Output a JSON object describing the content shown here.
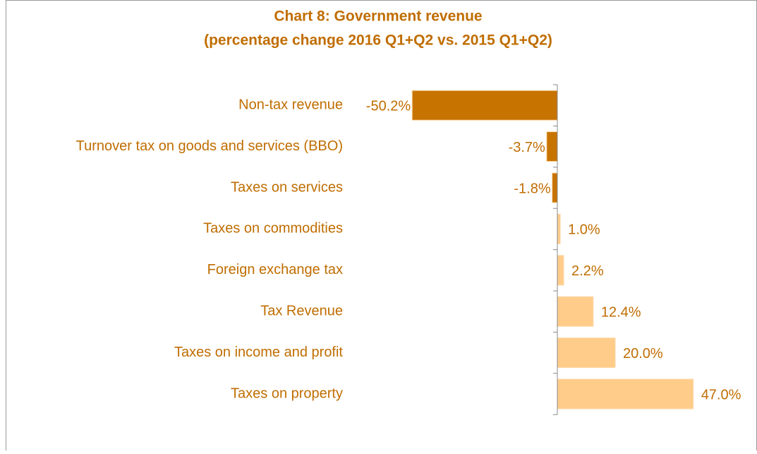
{
  "chart_data": {
    "type": "barh",
    "title": "Chart 8: Government revenue",
    "subtitle": "(percentage change 2016 Q1+Q2 vs. 2015 Q1+Q2)",
    "categories": [
      "Non-tax revenue",
      "Turnover tax on goods and services (BBO)",
      "Taxes on services",
      "Taxes on commodities",
      "Foreign exchange tax",
      "Tax Revenue",
      "Taxes on income and profit",
      "Taxes on property"
    ],
    "values": [
      -50.2,
      -3.7,
      -1.8,
      1.0,
      2.2,
      12.4,
      20.0,
      47.0
    ],
    "value_labels": [
      "-50.2%",
      "-3.7%",
      "-1.8%",
      "1.0%",
      "2.2%",
      "12.4%",
      "20.0%",
      "47.0%"
    ],
    "colors": [
      "#C77300",
      "#C77300",
      "#C77300",
      "#FFCC8A",
      "#FFCC8A",
      "#FFCC8A",
      "#FFCC8A",
      "#FFCC8A"
    ]
  }
}
